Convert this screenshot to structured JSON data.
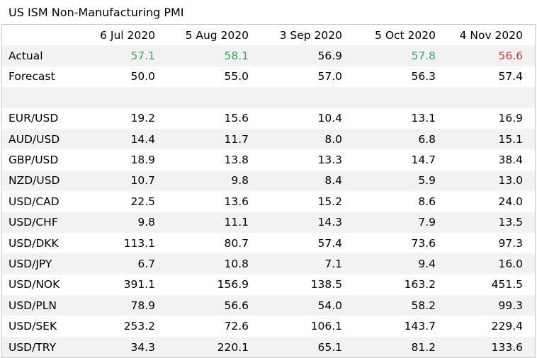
{
  "title": "US ISM Non-Manufacturing PMI",
  "columns": [
    "6 Jul 2020",
    "5 Aug 2020",
    "3 Sep 2020",
    "5 Oct 2020",
    "4 Nov 2020"
  ],
  "colors": {
    "beat": "#3f9f5f",
    "miss": "#c9393a"
  },
  "rows": [
    {
      "label": "Actual",
      "values": [
        "57.1",
        "58.1",
        "56.9",
        "57.8",
        "56.6"
      ],
      "styles": [
        "green",
        "green",
        "",
        "green",
        "red"
      ]
    },
    {
      "label": "Forecast",
      "values": [
        "50.0",
        "55.0",
        "57.0",
        "56.3",
        "57.4"
      ]
    },
    {
      "label": "",
      "values": [
        "",
        "",
        "",
        "",
        ""
      ]
    },
    {
      "label": "EUR/USD",
      "values": [
        "19.2",
        "15.6",
        "10.4",
        "13.1",
        "16.9"
      ]
    },
    {
      "label": "AUD/USD",
      "values": [
        "14.4",
        "11.7",
        "8.0",
        "6.8",
        "15.1"
      ]
    },
    {
      "label": "GBP/USD",
      "values": [
        "18.9",
        "13.8",
        "13.3",
        "14.7",
        "38.4"
      ]
    },
    {
      "label": "NZD/USD",
      "values": [
        "10.7",
        "9.8",
        "8.4",
        "5.9",
        "13.0"
      ]
    },
    {
      "label": "USD/CAD",
      "values": [
        "22.5",
        "13.6",
        "15.2",
        "8.6",
        "24.0"
      ]
    },
    {
      "label": "USD/CHF",
      "values": [
        "9.8",
        "11.1",
        "14.3",
        "7.9",
        "13.5"
      ]
    },
    {
      "label": "USD/DKK",
      "values": [
        "113.1",
        "80.7",
        "57.4",
        "73.6",
        "97.3"
      ]
    },
    {
      "label": "USD/JPY",
      "values": [
        "6.7",
        "10.8",
        "7.1",
        "9.4",
        "16.0"
      ]
    },
    {
      "label": "USD/NOK",
      "values": [
        "391.1",
        "156.9",
        "138.5",
        "163.2",
        "451.5"
      ]
    },
    {
      "label": "USD/PLN",
      "values": [
        "78.9",
        "56.6",
        "54.0",
        "58.2",
        "99.3"
      ]
    },
    {
      "label": "USD/SEK",
      "values": [
        "253.2",
        "72.6",
        "106.1",
        "143.7",
        "229.4"
      ]
    },
    {
      "label": "USD/TRY",
      "values": [
        "34.3",
        "220.1",
        "65.1",
        "81.2",
        "133.6"
      ]
    }
  ]
}
